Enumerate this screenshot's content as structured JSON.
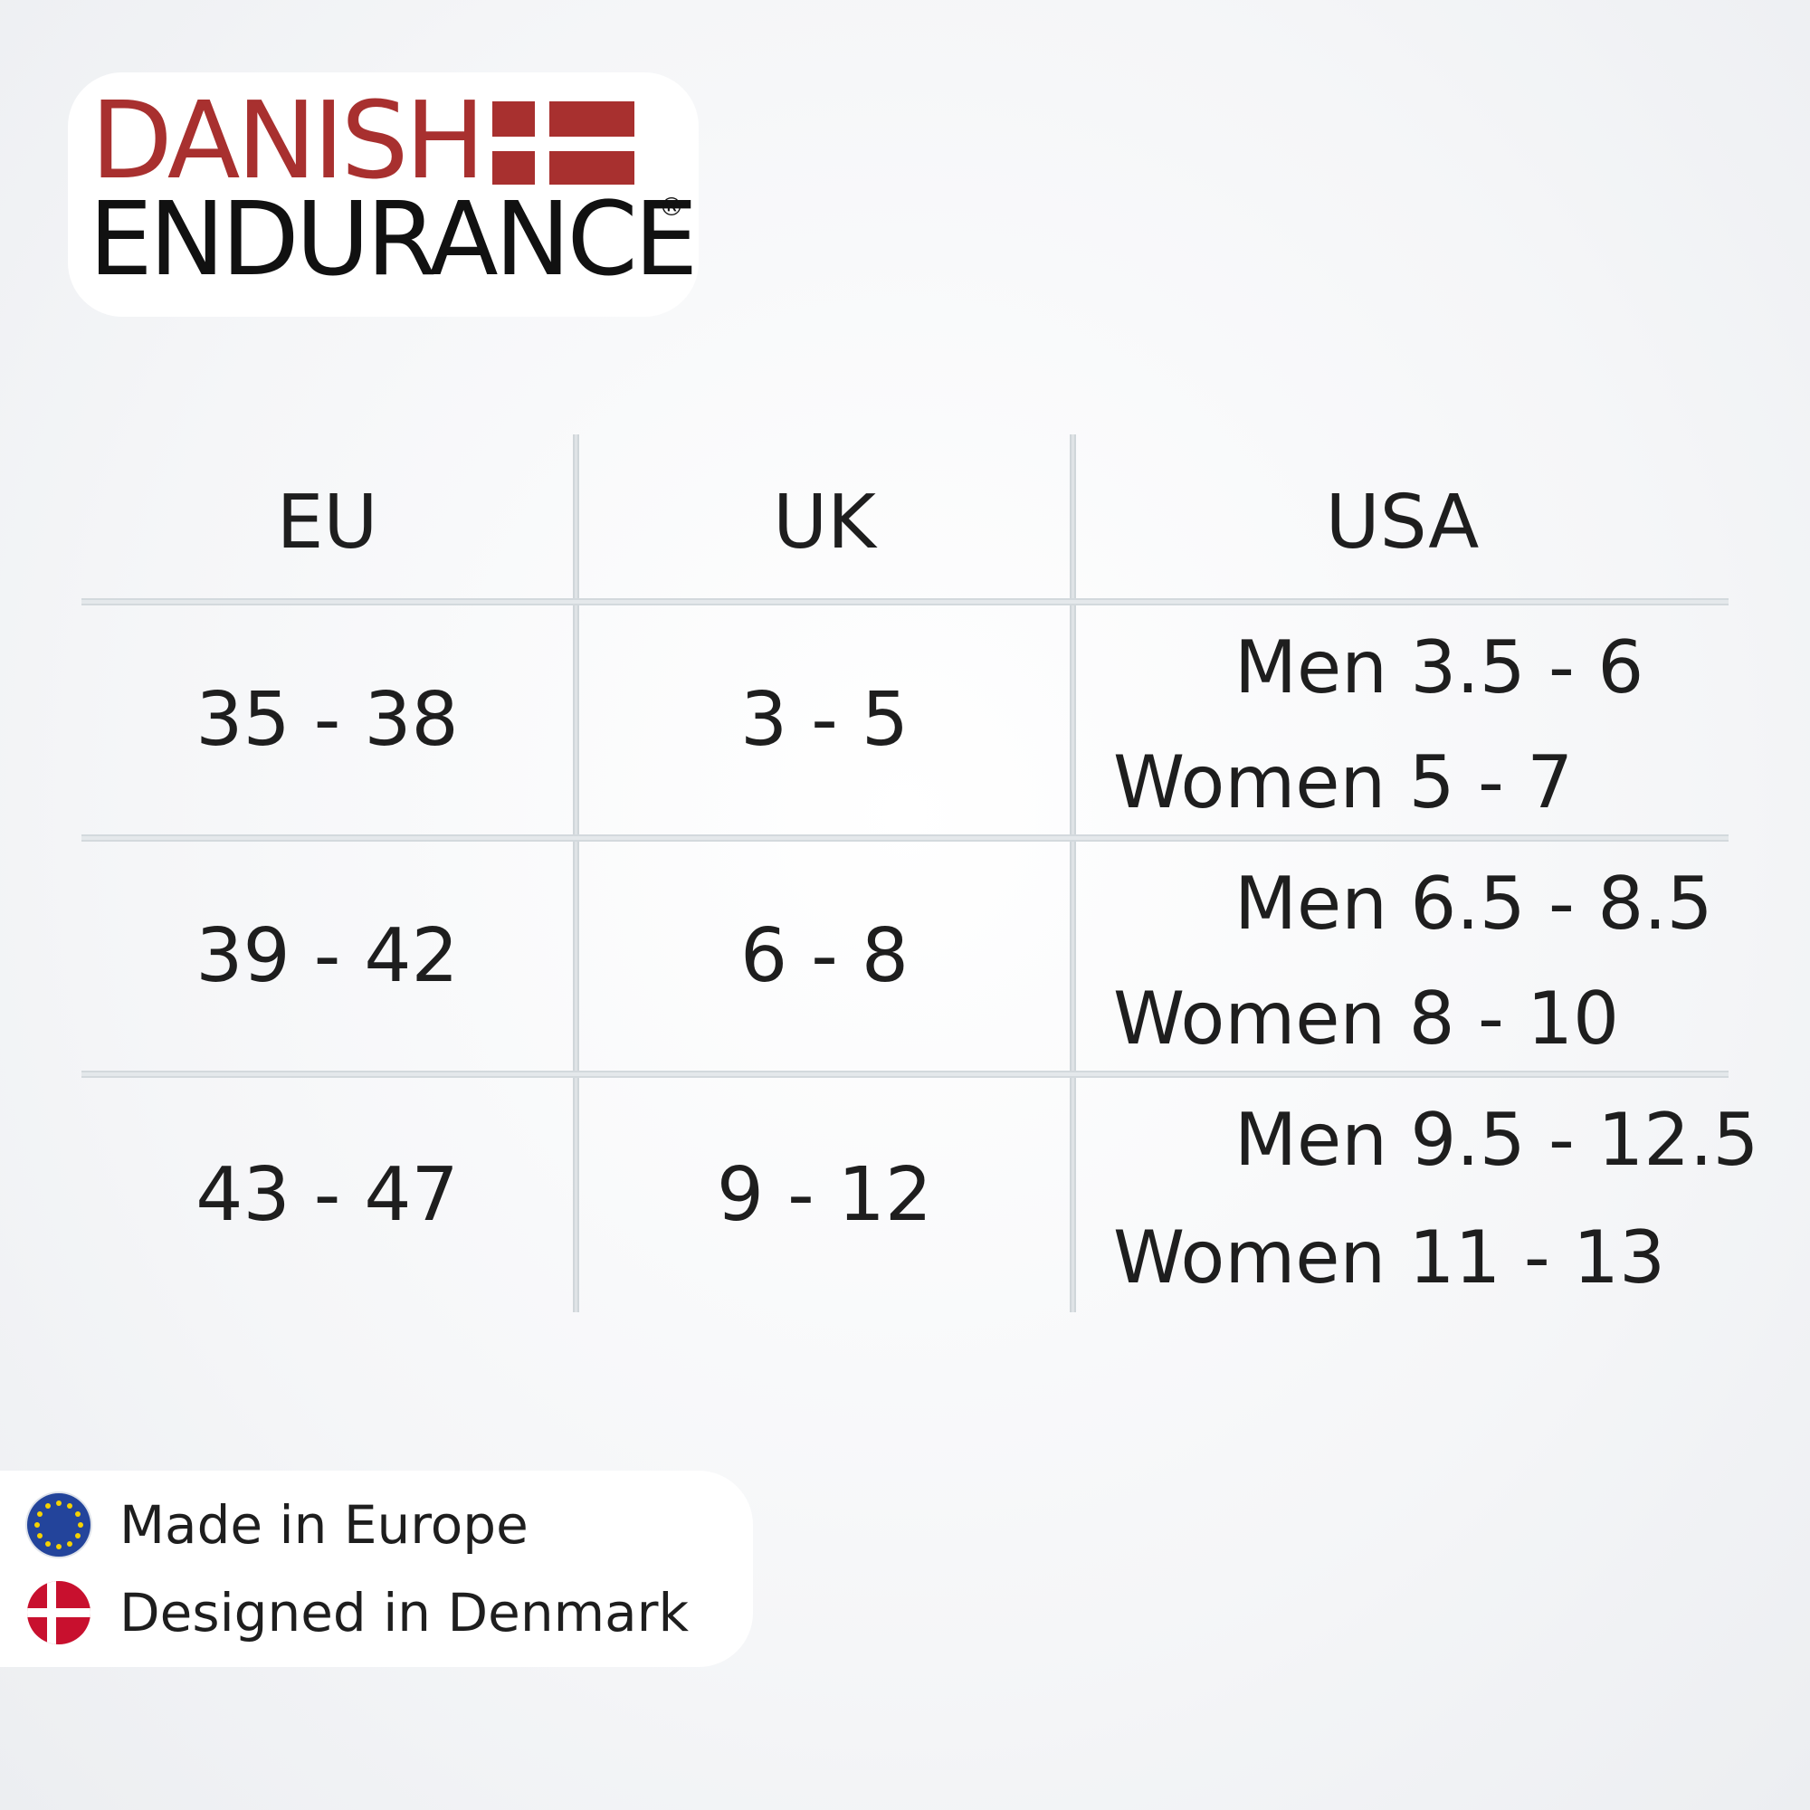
{
  "logo": {
    "line1": "DANISH",
    "line2": "ENDURANCE",
    "registered": "®",
    "brand_color": "#a8302f"
  },
  "size_table": {
    "headers": [
      "EU",
      "UK",
      "USA"
    ],
    "rows": [
      {
        "eu": "35 - 38",
        "uk": "3 - 5",
        "usa_men": "Men 3.5 - 6",
        "usa_women": "Women 5 - 7"
      },
      {
        "eu": "39 - 42",
        "uk": "6 - 8",
        "usa_men": "Men 6.5 - 8.5",
        "usa_women": "Women 8 - 10"
      },
      {
        "eu": "43 - 47",
        "uk": "9 - 12",
        "usa_men": "Men 9.5 - 12.5",
        "usa_women": "Women 11 - 13"
      }
    ]
  },
  "badges": [
    {
      "icon": "eu-flag-icon",
      "text": "Made in Europe"
    },
    {
      "icon": "denmark-flag-icon",
      "text": "Designed in Denmark"
    }
  ]
}
